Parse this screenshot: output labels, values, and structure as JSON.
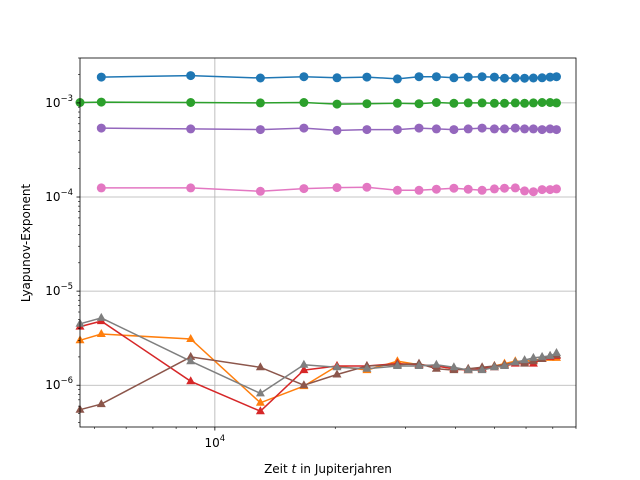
{
  "chart_data": {
    "type": "line",
    "x_scale": "log",
    "y_scale": "log",
    "xlim": [
      4600,
      80000
    ],
    "ylim": [
      3.6e-07,
      0.003
    ],
    "grid": true,
    "xlabel_prefix": "Zeit ",
    "xlabel_var": "t",
    "xlabel_suffix": " in Jupiterjahren",
    "ylabel": "Lyapunov-Exponent",
    "x_major_ticks": [
      {
        "value": 10000,
        "base": "10",
        "exp": "4"
      }
    ],
    "y_major_ticks": [
      {
        "value": 1e-06,
        "base": "10",
        "exp": "−6"
      },
      {
        "value": 1e-05,
        "base": "10",
        "exp": "−5"
      },
      {
        "value": 0.0001,
        "base": "10",
        "exp": "−4"
      },
      {
        "value": 0.001,
        "base": "10",
        "exp": "−3"
      }
    ],
    "x_minor_ticks": [
      5000,
      6000,
      7000,
      8000,
      9000,
      20000,
      30000,
      40000,
      50000,
      60000,
      70000,
      80000
    ],
    "series": [
      {
        "color": "#1f77b4",
        "marker": "circle",
        "x": [
          5200,
          8700,
          13000,
          16700,
          20200,
          24000,
          28600,
          32400,
          35800,
          39600,
          43000,
          46600,
          50000,
          53000,
          56400,
          59500,
          62600,
          65800,
          68900,
          71500
        ],
        "y": [
          0.00188,
          0.00195,
          0.00184,
          0.0019,
          0.00185,
          0.00188,
          0.0018,
          0.0019,
          0.0019,
          0.00185,
          0.00188,
          0.0019,
          0.00188,
          0.00183,
          0.00184,
          0.00183,
          0.00184,
          0.00185,
          0.00188,
          0.0019
        ]
      },
      {
        "color": "#ff7f0e",
        "marker": "triangle",
        "x": [
          4600,
          5200,
          8700,
          13000,
          16700,
          20200,
          24000,
          28600,
          32400,
          35800,
          39600,
          43000,
          46600,
          50000,
          53000,
          56400,
          59500,
          62600,
          65800,
          68900,
          71500
        ],
        "y": [
          3e-06,
          3.5e-06,
          3.1e-06,
          6.5e-07,
          9.8e-07,
          1.6e-06,
          1.45e-06,
          1.8e-06,
          1.65e-06,
          1.6e-06,
          1.5e-06,
          1.45e-06,
          1.5e-06,
          1.6e-06,
          1.7e-06,
          1.8e-06,
          1.8e-06,
          1.85e-06,
          1.9e-06,
          1.95e-06,
          1.95e-06
        ]
      },
      {
        "color": "#2ca02c",
        "marker": "circle",
        "x": [
          4600,
          5200,
          8700,
          13000,
          16700,
          20200,
          24000,
          28600,
          32400,
          35800,
          39600,
          43000,
          46600,
          50000,
          53000,
          56400,
          59500,
          62600,
          65800,
          68900,
          71500
        ],
        "y": [
          0.00101,
          0.00102,
          0.00101,
          0.001,
          0.00101,
          0.00097,
          0.00098,
          0.00099,
          0.00098,
          0.00101,
          0.00099,
          0.001,
          0.001,
          0.00099,
          0.00099,
          0.001,
          0.00099,
          0.001,
          0.00101,
          0.00101,
          0.001
        ]
      },
      {
        "color": "#d62728",
        "marker": "triangle",
        "x": [
          4600,
          5200,
          8700,
          13000,
          16700,
          20200,
          24000,
          28600,
          32400,
          35800,
          39600,
          43000,
          46600,
          50000,
          53000,
          56400,
          59500,
          62600,
          65800,
          68900,
          71500
        ],
        "y": [
          4.2e-06,
          4.8e-06,
          1.1e-06,
          5.3e-07,
          1.45e-06,
          1.6e-06,
          1.6e-06,
          1.7e-06,
          1.65e-06,
          1.6e-06,
          1.5e-06,
          1.45e-06,
          1.5e-06,
          1.55e-06,
          1.6e-06,
          1.7e-06,
          1.75e-06,
          1.7e-06,
          1.9e-06,
          2e-06,
          2.05e-06
        ]
      },
      {
        "color": "#9467bd",
        "marker": "circle",
        "x": [
          5200,
          8700,
          13000,
          16700,
          20200,
          24000,
          28600,
          32400,
          35800,
          39600,
          43000,
          46600,
          50000,
          53000,
          56400,
          59500,
          62600,
          65800,
          68900,
          71500
        ],
        "y": [
          0.00054,
          0.00053,
          0.00052,
          0.00054,
          0.00051,
          0.00052,
          0.00052,
          0.00054,
          0.00053,
          0.00052,
          0.00053,
          0.00054,
          0.00053,
          0.00053,
          0.00054,
          0.00053,
          0.00053,
          0.00052,
          0.00053,
          0.00052
        ]
      },
      {
        "color": "#8c564b",
        "marker": "triangle",
        "x": [
          4600,
          5200,
          8700,
          13000,
          16700,
          20200,
          24000,
          28600,
          32400,
          35800,
          39600,
          43000,
          46600,
          50000,
          53000,
          56400,
          59500,
          62600,
          65800,
          68900,
          71500
        ],
        "y": [
          5.5e-07,
          6.3e-07,
          2e-06,
          1.55e-06,
          1e-06,
          1.3e-06,
          1.6e-06,
          1.65e-06,
          1.7e-06,
          1.5e-06,
          1.45e-06,
          1.5e-06,
          1.55e-06,
          1.6e-06,
          1.65e-06,
          1.75e-06,
          1.7e-06,
          1.8e-06,
          1.9e-06,
          2.05e-06,
          2.1e-06
        ]
      },
      {
        "color": "#e377c2",
        "marker": "circle",
        "x": [
          5200,
          8700,
          13000,
          16700,
          20200,
          24000,
          28600,
          32400,
          35800,
          39600,
          43000,
          46600,
          50000,
          53000,
          56400,
          59500,
          62600,
          65800,
          68900,
          71500
        ],
        "y": [
          0.000125,
          0.000125,
          0.000115,
          0.000123,
          0.000126,
          0.000127,
          0.000118,
          0.000118,
          0.000121,
          0.000124,
          0.000121,
          0.000118,
          0.000122,
          0.000124,
          0.000125,
          0.000116,
          0.000114,
          0.00012,
          0.00012,
          0.000122
        ]
      },
      {
        "color": "#7f7f7f",
        "marker": "triangle",
        "x": [
          4600,
          5200,
          8700,
          13000,
          16700,
          20200,
          24000,
          28600,
          32400,
          35800,
          39600,
          43000,
          46600,
          50000,
          53000,
          56400,
          59500,
          62600,
          65800,
          68900,
          71500
        ],
        "y": [
          4.5e-06,
          5.2e-06,
          1.8e-06,
          8.2e-07,
          1.65e-06,
          1.55e-06,
          1.5e-06,
          1.6e-06,
          1.6e-06,
          1.65e-06,
          1.55e-06,
          1.45e-06,
          1.45e-06,
          1.55e-06,
          1.6e-06,
          1.75e-06,
          1.85e-06,
          1.95e-06,
          2e-06,
          2.05e-06,
          2.2e-06
        ]
      }
    ]
  }
}
